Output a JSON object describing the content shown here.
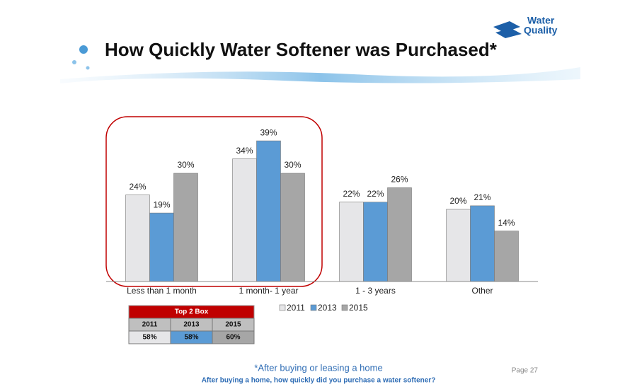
{
  "header": {
    "title": "How Quickly Water Softener was Purchased*",
    "logo_line1": "Water",
    "logo_line2": "Quality"
  },
  "chart_data": {
    "type": "bar",
    "categories": [
      "Less than 1 month",
      "1 month- 1 year",
      "1 - 3 years",
      "Other"
    ],
    "series": [
      {
        "name": "2011",
        "color": "#e6e6e8",
        "values": [
          24,
          34,
          22,
          20
        ],
        "value_labels": [
          "24%",
          "34%",
          "22%",
          "20%"
        ]
      },
      {
        "name": "2013",
        "color": "#5b9bd5",
        "values": [
          19,
          39,
          22,
          21
        ],
        "value_labels": [
          "19%",
          "39%",
          "22%",
          "21%"
        ]
      },
      {
        "name": "2015",
        "color": "#a6a6a6",
        "values": [
          30,
          30,
          26,
          14
        ],
        "value_labels": [
          "30%",
          "30%",
          "26%",
          "14%"
        ]
      }
    ]
  },
  "table": {
    "title": "Top 2 Box",
    "headers": [
      "2011",
      "2013",
      "2015"
    ],
    "values": [
      "58%",
      "58%",
      "60%"
    ]
  },
  "footer": {
    "note": "*After buying or leasing a home",
    "question": "After buying a home, how quickly did you purchase a water softener?",
    "page": "Page 27"
  }
}
